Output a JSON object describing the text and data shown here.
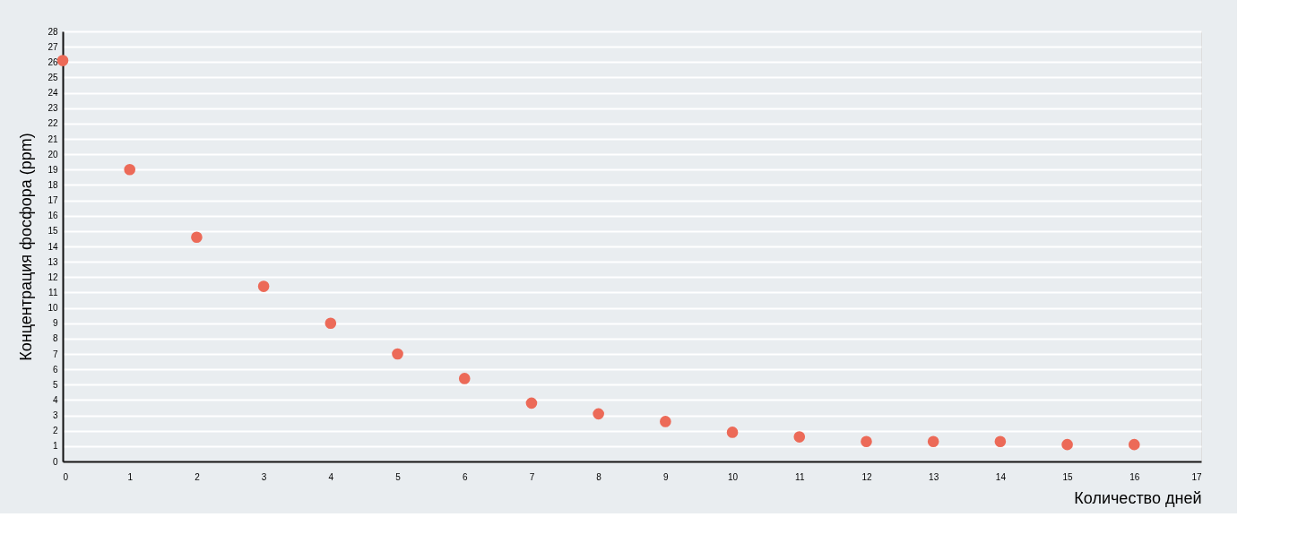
{
  "chart_data": {
    "type": "scatter",
    "xlabel": "Количество дней",
    "ylabel": "Концентрация фосфора (ppm)",
    "x": [
      0,
      1,
      2,
      3,
      4,
      5,
      6,
      7,
      8,
      9,
      10,
      11,
      12,
      13,
      14,
      15,
      16
    ],
    "series": [
      {
        "color": "#ec6a58",
        "values": [
          26.1,
          19.0,
          14.6,
          11.4,
          9.0,
          7.0,
          5.4,
          3.8,
          3.1,
          2.6,
          1.9,
          1.6,
          1.3,
          1.3,
          1.3,
          1.1,
          1.1
        ]
      }
    ],
    "xlim": [
      0,
      17
    ],
    "xticks": [
      0,
      1,
      2,
      3,
      4,
      5,
      6,
      7,
      8,
      9,
      10,
      11,
      12,
      13,
      14,
      15,
      16,
      17
    ],
    "ylim": [
      0,
      28
    ],
    "yticks": [
      0,
      1,
      2,
      3,
      4,
      5,
      6,
      7,
      8,
      9,
      10,
      11,
      12,
      13,
      14,
      15,
      16,
      17,
      18,
      19,
      20,
      21,
      22,
      23,
      24,
      25,
      26,
      27,
      28
    ],
    "grid": "y",
    "marker": "circle",
    "legend": false
  }
}
